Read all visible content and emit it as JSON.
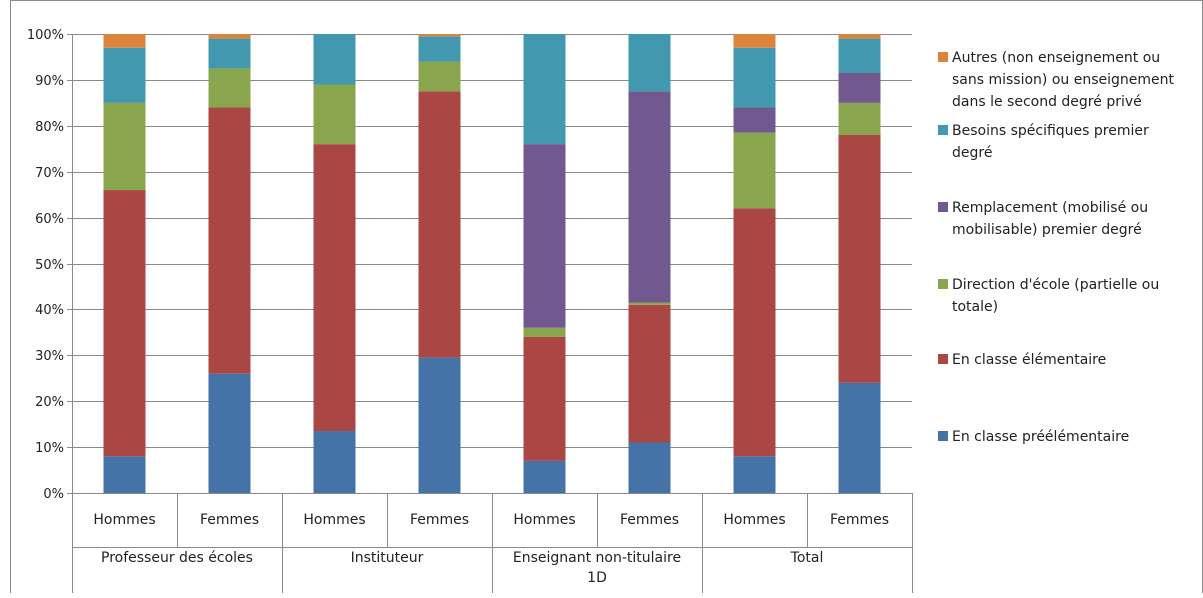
{
  "chart_data": {
    "type": "bar",
    "stacked": true,
    "percent_stacked": true,
    "ylim": [
      0,
      100
    ],
    "y_ticks": [
      "0%",
      "10%",
      "20%",
      "30%",
      "40%",
      "50%",
      "60%",
      "70%",
      "80%",
      "90%",
      "100%"
    ],
    "grid": true,
    "legend_position": "right",
    "groups": [
      {
        "label_lines": [
          "Professeur des écoles"
        ],
        "categories": [
          "Hommes",
          "Femmes"
        ]
      },
      {
        "label_lines": [
          "Instituteur"
        ],
        "categories": [
          "Hommes",
          "Femmes"
        ]
      },
      {
        "label_lines": [
          "Enseignant non-titulaire",
          "1D"
        ],
        "categories": [
          "Hommes",
          "Femmes"
        ]
      },
      {
        "label_lines": [
          "Total"
        ],
        "categories": [
          "Hommes",
          "Femmes"
        ]
      }
    ],
    "series": [
      {
        "name": "En classe préélémentaire",
        "color": "#4572A7",
        "values": [
          8,
          26,
          13.5,
          29.5,
          7,
          11,
          8,
          24
        ]
      },
      {
        "name": "En classe élémentaire",
        "color": "#AA4643",
        "values": [
          58,
          58,
          62.5,
          58,
          27,
          30,
          54,
          54
        ]
      },
      {
        "name": "Direction d'école (partielle ou totale)",
        "color": "#89A54E",
        "values": [
          19,
          8.5,
          13,
          6.5,
          2,
          0.5,
          16.5,
          7
        ]
      },
      {
        "name": "Remplacement (mobilisé ou mobilisable) premier degré",
        "color": "#71588F",
        "values": [
          0,
          0,
          0,
          0,
          40,
          46,
          5.5,
          6.5
        ]
      },
      {
        "name": "Besoins spécifiques premier degré",
        "color": "#4198AF",
        "values": [
          12,
          6.5,
          11,
          5.5,
          24,
          12.5,
          13,
          7.5
        ]
      },
      {
        "name": "Autres (non enseignement ou sans mission) ou enseignement dans le second degré privé",
        "color": "#DB843D",
        "values": [
          3,
          1,
          0,
          0.5,
          0,
          0,
          3,
          1
        ]
      }
    ],
    "legend_lines": [
      [
        "Autres (non enseignement ou",
        "sans mission) ou enseignement",
        "dans le second degré privé"
      ],
      [
        "Besoins spécifiques premier",
        "degré"
      ],
      [
        "Remplacement (mobilisé ou",
        "mobilisable) premier degré"
      ],
      [
        "Direction d'école (partielle ou",
        "totale)"
      ],
      [
        "En classe élémentaire"
      ],
      [
        "En classe préélémentaire"
      ]
    ],
    "legend_order": [
      5,
      4,
      3,
      2,
      1,
      0
    ]
  }
}
